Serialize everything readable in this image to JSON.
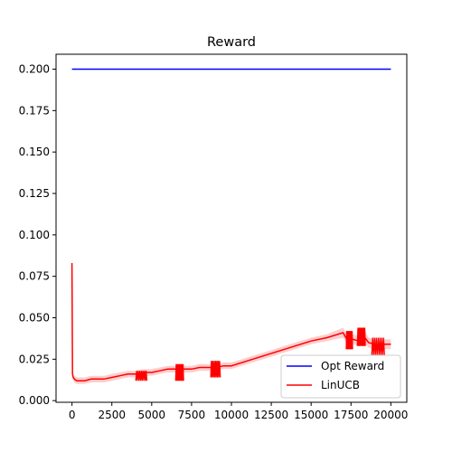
{
  "chart_data": {
    "type": "line",
    "title": "Reward",
    "xlabel": "",
    "ylabel": "",
    "xlim": [
      -1000,
      21000
    ],
    "ylim": [
      -0.001,
      0.209
    ],
    "x_ticks": [
      0,
      2500,
      5000,
      7500,
      10000,
      12500,
      15000,
      17500,
      20000
    ],
    "x_tick_labels": [
      "0",
      "2500",
      "5000",
      "7500",
      "10000",
      "12500",
      "15000",
      "17500",
      "20000"
    ],
    "y_ticks": [
      0.0,
      0.025,
      0.05,
      0.075,
      0.1,
      0.125,
      0.15,
      0.175,
      0.2
    ],
    "y_tick_labels": [
      "0.000",
      "0.025",
      "0.050",
      "0.075",
      "0.100",
      "0.125",
      "0.150",
      "0.175",
      "0.200"
    ],
    "grid": false,
    "legend_position": "lower-right",
    "series": [
      {
        "name": "Opt Reward",
        "color": "#0000ff",
        "x": [
          0,
          20000
        ],
        "y": [
          0.2,
          0.2
        ]
      },
      {
        "name": "LinUCB",
        "color": "#ff0000",
        "band_color": "#ffc8c8",
        "x": [
          0,
          30,
          80,
          150,
          300,
          500,
          800,
          1200,
          1600,
          2000,
          2500,
          3000,
          3500,
          4000,
          4500,
          5000,
          5500,
          6000,
          6500,
          7000,
          7500,
          8000,
          8500,
          9000,
          9500,
          10000,
          11000,
          12000,
          13000,
          14000,
          15000,
          16000,
          17000,
          17300,
          17600,
          18000,
          18300,
          18600,
          19000,
          19400,
          19600,
          20000
        ],
        "y": [
          0.083,
          0.016,
          0.014,
          0.013,
          0.012,
          0.012,
          0.012,
          0.013,
          0.013,
          0.013,
          0.014,
          0.015,
          0.016,
          0.016,
          0.017,
          0.017,
          0.018,
          0.019,
          0.019,
          0.019,
          0.019,
          0.02,
          0.02,
          0.02,
          0.021,
          0.021,
          0.024,
          0.027,
          0.03,
          0.033,
          0.036,
          0.038,
          0.041,
          0.036,
          0.037,
          0.036,
          0.039,
          0.035,
          0.034,
          0.032,
          0.034,
          0.034
        ],
        "band_half_width": [
          0.006,
          0.003,
          0.002,
          0.002,
          0.002,
          0.002,
          0.002,
          0.002,
          0.002,
          0.002,
          0.002,
          0.002,
          0.002,
          0.002,
          0.002,
          0.002,
          0.002,
          0.002,
          0.002,
          0.002,
          0.002,
          0.002,
          0.002,
          0.002,
          0.002,
          0.002,
          0.002,
          0.002,
          0.002,
          0.002,
          0.002,
          0.002,
          0.003,
          0.003,
          0.003,
          0.003,
          0.004,
          0.003,
          0.003,
          0.003,
          0.003,
          0.003
        ],
        "jitter": [
          {
            "x0": 4000,
            "x1": 4700,
            "low": 0.012,
            "high": 0.018
          },
          {
            "x0": 6500,
            "x1": 7000,
            "low": 0.012,
            "high": 0.022
          },
          {
            "x0": 8700,
            "x1": 9300,
            "low": 0.014,
            "high": 0.024
          },
          {
            "x0": 17200,
            "x1": 17600,
            "low": 0.031,
            "high": 0.042
          },
          {
            "x0": 17900,
            "x1": 18400,
            "low": 0.033,
            "high": 0.044
          },
          {
            "x0": 18800,
            "x1": 19600,
            "low": 0.027,
            "high": 0.038
          }
        ]
      }
    ]
  }
}
